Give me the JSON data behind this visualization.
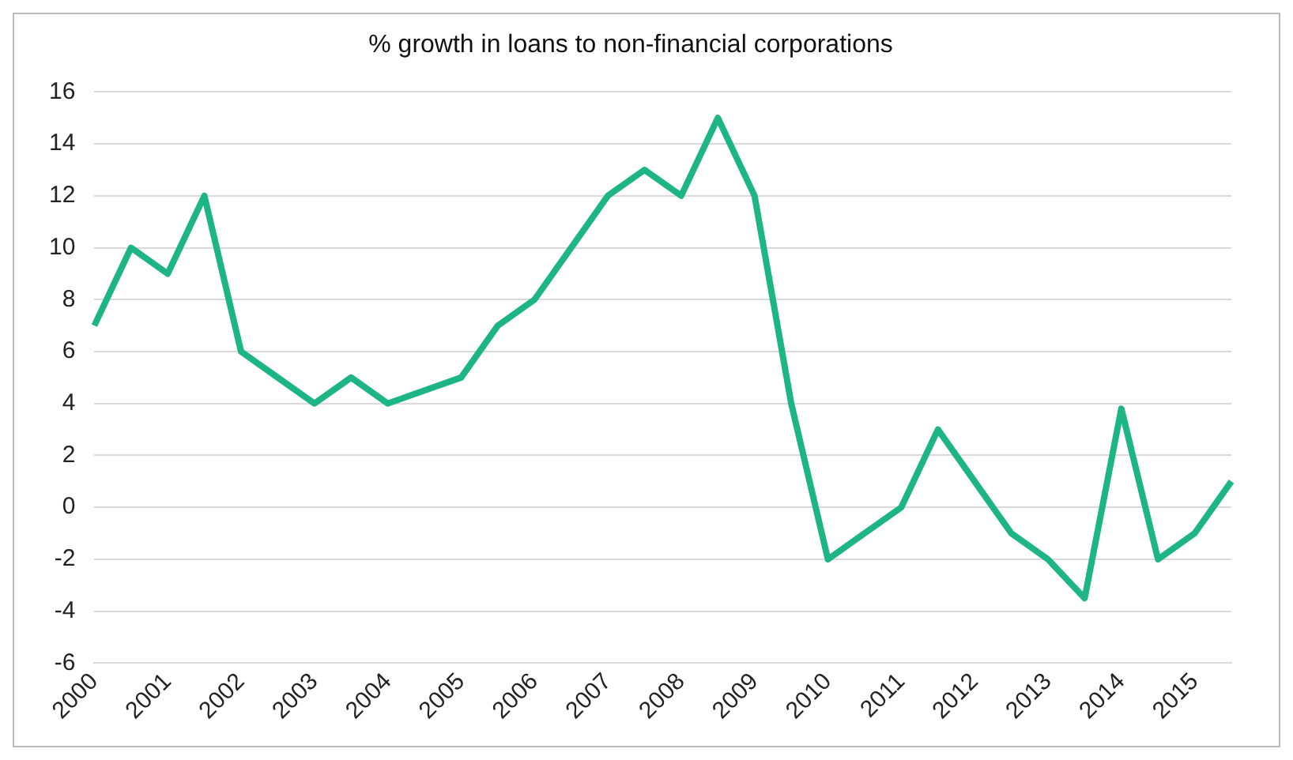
{
  "chart_data": {
    "type": "line",
    "title": "% growth in loans to non-financial corporations",
    "categories": [
      "2000",
      null,
      "2001",
      null,
      "2002",
      null,
      "2003",
      null,
      "2004",
      null,
      "2005",
      null,
      "2006",
      null,
      "2007",
      null,
      "2008",
      null,
      "2009",
      null,
      "2010",
      null,
      "2011",
      null,
      "2012",
      null,
      "2013",
      null,
      "2014",
      null,
      "2015",
      null
    ],
    "series": [
      {
        "color": "#1db584",
        "values": [
          7,
          10,
          9,
          12,
          6,
          5,
          4,
          5,
          4,
          4.5,
          5,
          7,
          8,
          10,
          12,
          13,
          12,
          15,
          12,
          4,
          -2,
          -1,
          0,
          3,
          1,
          -1,
          -2,
          -3.5,
          3.8,
          -2,
          -1,
          1
        ]
      }
    ],
    "ylim": [
      -6,
      16
    ],
    "yticks": [
      -6,
      -4,
      -2,
      0,
      2,
      4,
      6,
      8,
      10,
      12,
      14,
      16
    ],
    "grid": "y",
    "legend": false,
    "marker": "none",
    "line_style": "solid"
  }
}
